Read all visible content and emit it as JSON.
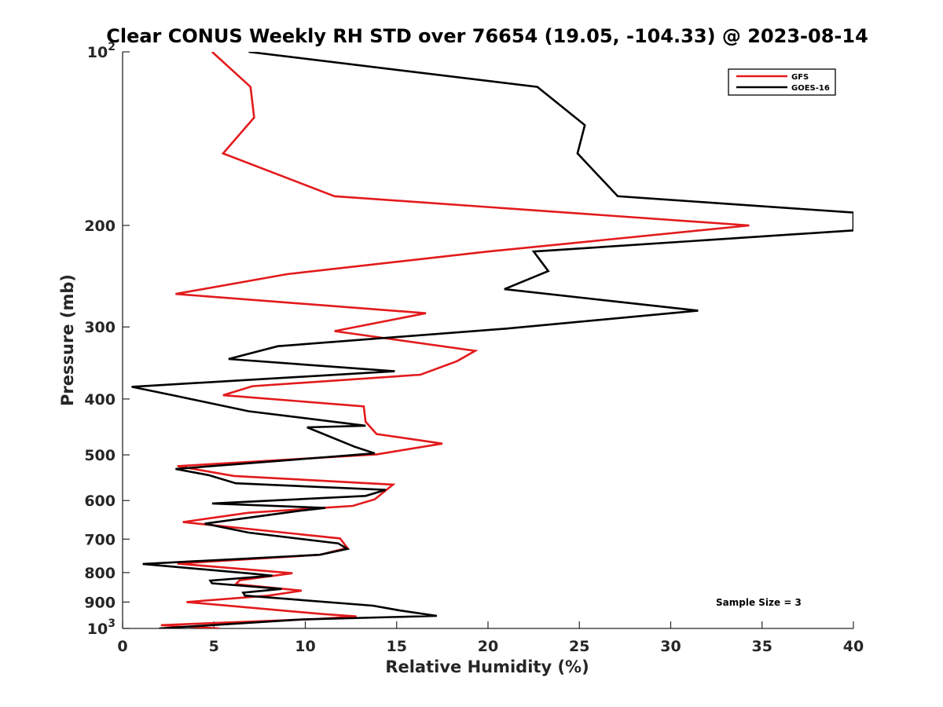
{
  "chart_data": {
    "type": "line",
    "title": "Clear CONUS Weekly RH STD over 76654 (19.05, -104.33) @ 2023-08-14",
    "xlabel": "Relative Humidity (%)",
    "ylabel": "Pressure (mb)",
    "xlim": [
      0,
      40
    ],
    "ylim": [
      100,
      1000
    ],
    "yscale": "log",
    "y_reversed": true,
    "x_ticks": [
      "0",
      "5",
      "10",
      "15",
      "20",
      "25",
      "30",
      "35",
      "40"
    ],
    "y_ticks": [
      {
        "value": 100,
        "base": "10",
        "exp": "2"
      },
      {
        "value": 200,
        "label": "200"
      },
      {
        "value": 300,
        "label": "300"
      },
      {
        "value": 400,
        "label": "400"
      },
      {
        "value": 500,
        "label": "500"
      },
      {
        "value": 600,
        "label": "600"
      },
      {
        "value": 700,
        "label": "700"
      },
      {
        "value": 800,
        "label": "800"
      },
      {
        "value": 900,
        "label": "900"
      },
      {
        "value": 1000,
        "base": "10",
        "exp": "3"
      }
    ],
    "legend_position": "top-right",
    "annotation": "Sample Size = 3",
    "series": [
      {
        "name": "GFS",
        "color": "#e31a1c",
        "x": [
          4.9,
          7.0,
          7.2,
          5.5,
          11.6,
          34.3,
          20.0,
          9.0,
          2.9,
          16.6,
          11.6,
          19.3,
          18.3,
          16.3,
          7.1,
          5.5,
          13.2,
          13.3,
          13.9,
          17.5,
          13.9,
          3.0,
          6.1,
          14.8,
          13.8,
          12.6,
          6.9,
          3.3,
          11.9,
          12.3,
          10.8,
          3.0,
          9.3,
          6.4,
          6.2,
          9.8,
          8.0,
          3.5,
          10.9,
          12.8,
          10.6,
          2.1,
          5.3
        ],
        "y": [
          100,
          115,
          130,
          150,
          178,
          200,
          222,
          243,
          263,
          284,
          305,
          330,
          344,
          363,
          380,
          394,
          412,
          438,
          460,
          478,
          499,
          523,
          544,
          563,
          597,
          613,
          630,
          654,
          698,
          725,
          745,
          772,
          802,
          825,
          838,
          860,
          877,
          900,
          944,
          953,
          963,
          987,
          1000
        ]
      },
      {
        "name": "GOES-16",
        "color": "#000000",
        "x": [
          6.9,
          22.7,
          25.3,
          24.9,
          27.1,
          40.0,
          40.0,
          22.5,
          23.3,
          20.9,
          31.5,
          21.0,
          8.5,
          5.8,
          14.9,
          0.5,
          2.9,
          6.9,
          13.3,
          10.1,
          12.7,
          13.8,
          2.9,
          4.7,
          6.2,
          14.4,
          13.3,
          4.9,
          11.1,
          9.7,
          4.5,
          6.9,
          11.8,
          12.3,
          10.8,
          1.1,
          7.0,
          8.2,
          4.8,
          4.9,
          8.7,
          6.6,
          6.7,
          13.7,
          15.2,
          17.2,
          9.8,
          2.0
        ],
        "y": [
          100,
          115,
          134,
          150,
          178,
          190,
          204,
          222,
          240,
          258,
          281,
          302,
          324,
          341,
          358,
          381,
          395,
          420,
          445,
          448,
          484,
          497,
          529,
          542,
          560,
          575,
          589,
          607,
          618,
          625,
          658,
          682,
          712,
          728,
          745,
          773,
          803,
          810,
          826,
          835,
          854,
          867,
          877,
          913,
          931,
          951,
          965,
          1000
        ]
      }
    ]
  }
}
